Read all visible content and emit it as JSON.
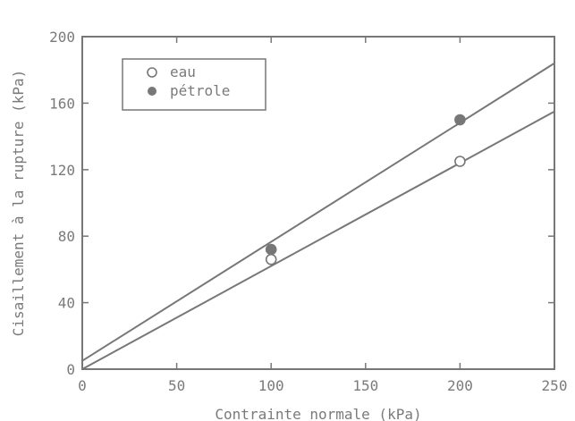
{
  "chart_data": {
    "type": "scatter",
    "title": "",
    "xlabel": "Contrainte normale (kPa)",
    "ylabel": "Cisaillement à la rupture (kPa)",
    "xlim": [
      0,
      250
    ],
    "ylim": [
      0,
      200
    ],
    "x_ticks": [
      "0",
      "50",
      "100",
      "150",
      "200",
      "250"
    ],
    "y_ticks": [
      "0",
      "40",
      "80",
      "120",
      "160",
      "200"
    ],
    "grid": false,
    "legend_position": "top-left",
    "series": [
      {
        "name": "eau",
        "marker": "open-circle",
        "color": "#777777",
        "points": [
          [
            100,
            66
          ],
          [
            200,
            125
          ]
        ],
        "fit_line": [
          [
            0,
            0
          ],
          [
            250,
            155
          ]
        ]
      },
      {
        "name": "pétrole",
        "marker": "filled-circle",
        "color": "#777777",
        "points": [
          [
            100,
            72
          ],
          [
            200,
            150
          ]
        ],
        "fit_line": [
          [
            0,
            5
          ],
          [
            250,
            184
          ]
        ]
      }
    ]
  }
}
